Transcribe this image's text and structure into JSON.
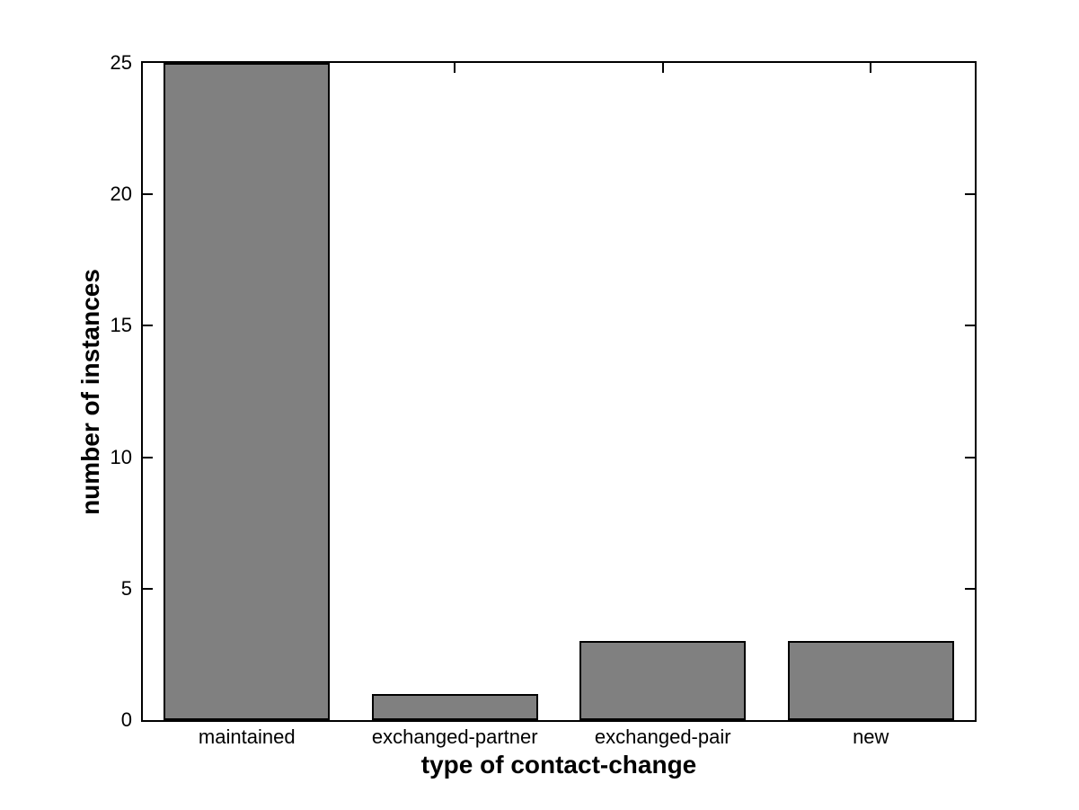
{
  "figure": {
    "background": "#ffffff",
    "axis_color": "#000000",
    "text_color": "#000000"
  },
  "chart_data": {
    "type": "bar",
    "title": "",
    "xlabel": "type of contact-change",
    "ylabel": "number of instances",
    "categories": [
      "maintained",
      "exchanged-partner",
      "exchanged-pair",
      "new"
    ],
    "values": [
      25,
      1,
      3,
      3
    ],
    "ylim": [
      0,
      25
    ],
    "yticks": [
      0,
      5,
      10,
      15,
      20,
      25
    ],
    "bar_width_fraction": 0.8,
    "grid": false,
    "legend": "none",
    "box": true,
    "bar_fill_color": "#808080",
    "bar_edge_color": "#000000"
  }
}
